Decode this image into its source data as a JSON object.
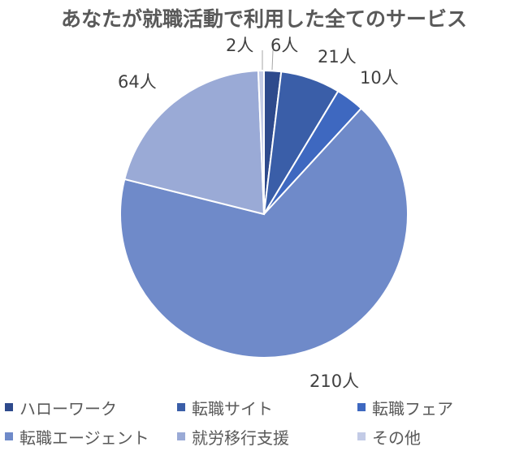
{
  "chart_data": {
    "type": "pie",
    "title": "あなたが就職活動で利用した全てのサービス",
    "unit": "人",
    "categories": [
      "ハローワーク",
      "転職サイト",
      "転職フェア",
      "転職エージェント",
      "就労移行支援",
      "その他"
    ],
    "values": [
      6,
      21,
      10,
      210,
      64,
      2
    ],
    "data_labels": [
      "6人",
      "21人",
      "10人",
      "210人",
      "64人",
      "2人"
    ],
    "colors": [
      "#2e4a8c",
      "#3a5ea8",
      "#3e68c0",
      "#6f8ac9",
      "#9aaad6",
      "#c3cbe6"
    ],
    "start_angle_deg": 0,
    "direction": "clockwise",
    "legend_position": "bottom"
  },
  "title": "あなたが就職活動で利用した全てのサービス",
  "labels": {
    "hello_work": "6人",
    "job_site": "21人",
    "job_fair": "10人",
    "agent": "210人",
    "transition": "64人",
    "other": "2人"
  },
  "legend": [
    {
      "label": "ハローワーク",
      "color": "#2e4a8c"
    },
    {
      "label": "転職サイト",
      "color": "#3a5ea8"
    },
    {
      "label": "転職フェア",
      "color": "#3e68c0"
    },
    {
      "label": "転職エージェント",
      "color": "#6f8ac9"
    },
    {
      "label": "就労移行支援",
      "color": "#9aaad6"
    },
    {
      "label": "その他",
      "color": "#c3cbe6"
    }
  ]
}
